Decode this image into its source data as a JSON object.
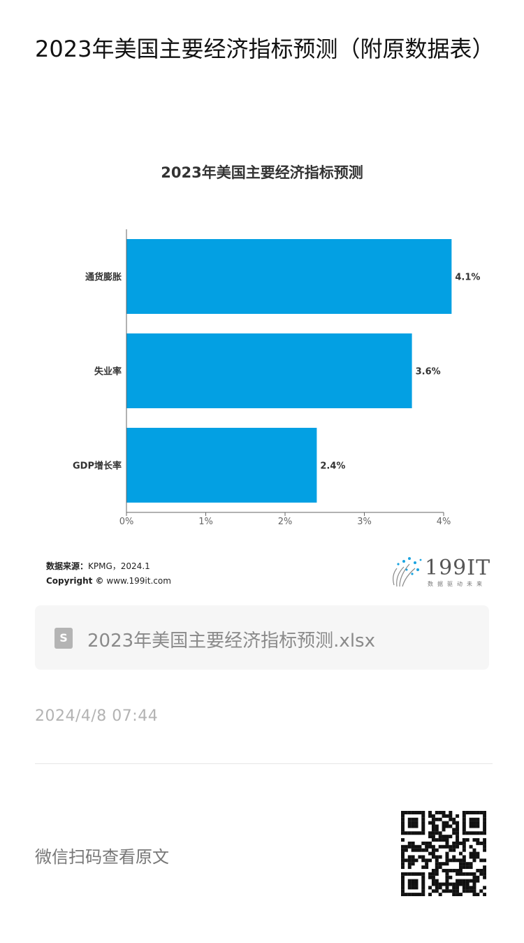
{
  "article": {
    "title": "2023年美国主要经济指标预测（附原数据表）"
  },
  "chart_data": {
    "type": "bar",
    "orientation": "horizontal",
    "title": "2023年美国主要经济指标预测",
    "categories": [
      "通货膨胀",
      "失业率",
      "GDP增长率"
    ],
    "values": [
      4.1,
      3.6,
      2.4
    ],
    "value_labels": [
      "4.1%",
      "3.6%",
      "2.4%"
    ],
    "xlim": [
      0,
      4
    ],
    "xticks": [
      "0%",
      "1%",
      "2%",
      "3%",
      "4%"
    ],
    "xlabel": "",
    "ylabel": "",
    "bar_color": "#03a0e3",
    "grid": false,
    "legend": "none"
  },
  "source": {
    "label": "数据来源：",
    "value": "KPMG，2024.1",
    "copyright_label": "Copyright ©",
    "copyright_value": "www.199it.com"
  },
  "logo": {
    "text": "199IT",
    "subtitle": "数据驱动未来"
  },
  "attachment": {
    "icon": "spreadsheet-file-icon",
    "icon_glyph": "S",
    "filename": "2023年美国主要经济指标预测.xlsx"
  },
  "meta": {
    "timestamp": "2024/4/8 07:44"
  },
  "footer": {
    "scan_text": "微信扫码查看原文"
  },
  "colors": {
    "accent": "#03a0e3",
    "muted": "#b3b3b3"
  }
}
